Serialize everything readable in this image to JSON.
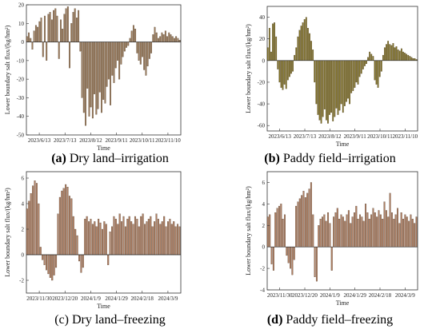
{
  "chart_data": [
    {
      "type": "bar",
      "panel_letter": "(a)",
      "caption": "Dry land–irrigation",
      "xlabel": "Time",
      "ylabel": "Lower boundary salt flux/(kg/hm²)",
      "ylim": [
        -50,
        20
      ],
      "yticks": [
        20,
        10,
        0,
        -10,
        -20,
        -30,
        -40,
        -50
      ],
      "xticks": [
        "2023/6/13",
        "2023/7/13",
        "2023/8/12",
        "2023/9/11",
        "2023/10/11",
        "2023/11/10"
      ],
      "bar_color": "#9c7b5a",
      "values": [
        3,
        5,
        2,
        -4,
        6,
        9,
        8,
        11,
        13,
        -8,
        14,
        -10,
        15,
        16,
        12,
        17,
        18,
        14,
        -9,
        12,
        7,
        15,
        18,
        19,
        -14,
        10,
        16,
        18,
        13,
        17,
        -5,
        -30,
        -38,
        -45,
        -25,
        -40,
        -35,
        -41,
        -28,
        -39,
        -36,
        -27,
        -38,
        -31,
        -33,
        -24,
        -20,
        -34,
        -18,
        -22,
        -14,
        -10,
        -20,
        -12,
        -8,
        -5,
        -3,
        -2,
        2,
        6,
        9,
        7,
        -6,
        -10,
        -12,
        -8,
        -15,
        -18,
        -13,
        -9,
        -6,
        4,
        8,
        5,
        2,
        3,
        5,
        4,
        6,
        3,
        5,
        4,
        3,
        2,
        3,
        2,
        1
      ]
    },
    {
      "type": "bar",
      "panel_letter": "(b)",
      "caption": "Paddy field–irrigation",
      "xlabel": "Time",
      "ylabel": "Lower boundary salt flux/(kg/hm²)",
      "ylim": [
        -65,
        50
      ],
      "yticks": [
        40,
        20,
        0,
        -20,
        -40,
        -60
      ],
      "xticks": [
        "2023/6/13",
        "2023/7/13",
        "2023/8/12",
        "2023/9/11",
        "2023/10/11",
        "2023/11/10"
      ],
      "bar_color": "#827324",
      "values": [
        12,
        30,
        8,
        34,
        35,
        22,
        -8,
        -20,
        -25,
        -27,
        -22,
        -26,
        -18,
        -15,
        -12,
        -10,
        5,
        12,
        22,
        28,
        32,
        35,
        38,
        40,
        30,
        25,
        18,
        10,
        -20,
        -40,
        -50,
        -55,
        -58,
        -52,
        -45,
        -55,
        -58,
        -50,
        -48,
        -56,
        -52,
        -44,
        -50,
        -46,
        -40,
        -48,
        -42,
        -38,
        -35,
        -40,
        -30,
        -28,
        -25,
        -20,
        -22,
        -15,
        -12,
        -8,
        -5,
        -3,
        3,
        8,
        6,
        4,
        -18,
        -22,
        -25,
        -15,
        -10,
        5,
        12,
        15,
        18,
        15,
        14,
        16,
        12,
        13,
        10,
        9,
        11,
        8,
        7,
        6,
        5,
        4,
        3,
        2,
        2,
        1
      ]
    },
    {
      "type": "bar",
      "panel_letter": "(c)",
      "caption": "Dry land–freezing",
      "xlabel": "Time",
      "ylabel": "Lower boundary salt flux/(kg/hm²)",
      "ylim": [
        -3,
        6.5
      ],
      "yticks": [
        6,
        4,
        2,
        0,
        -2
      ],
      "xticks": [
        "2023/11/30",
        "2023/12/20",
        "2024/1/9",
        "2024/1/29",
        "2024/2/18",
        "2024/3/9"
      ],
      "bar_color": "#b07f63",
      "values": [
        3.6,
        4.2,
        4.8,
        5.4,
        5.8,
        5.6,
        4.0,
        0.6,
        -0.4,
        -0.8,
        -1.2,
        -1.5,
        -1.8,
        -2.0,
        -1.6,
        -1.0,
        3.2,
        4.5,
        5.0,
        5.2,
        5.5,
        5.3,
        4.6,
        4.4,
        3.0,
        2.0,
        1.5,
        -0.5,
        -1.4,
        -1.0,
        2.8,
        3.0,
        2.6,
        2.8,
        2.4,
        2.6,
        2.2,
        2.8,
        2.5,
        2.0,
        2.6,
        2.4,
        -0.8,
        1.8,
        2.2,
        3.0,
        2.8,
        2.4,
        3.2,
        2.6,
        3.0,
        2.2,
        2.8,
        3.0,
        2.6,
        2.4,
        3.0,
        2.8,
        2.2,
        3.0,
        3.2,
        2.4,
        2.6,
        2.8,
        3.0,
        2.2,
        2.6,
        3.2,
        2.8,
        2.4,
        2.6,
        3.0,
        2.2,
        2.6,
        2.8,
        2.4,
        2.6,
        2.2,
        2.4,
        2.2
      ]
    },
    {
      "type": "bar",
      "panel_letter": "(d)",
      "caption": "Paddy field–freezing",
      "xlabel": "Time",
      "ylabel": "Lower boundary salt flux/(kg/hm²)",
      "ylim": [
        -4,
        7
      ],
      "yticks": [
        6,
        4,
        2,
        0,
        -2,
        -4
      ],
      "xticks": [
        "2023/11/30",
        "2023/12/20",
        "2024/1/9",
        "2024/1/29",
        "2024/2/18",
        "2024/3/9"
      ],
      "bar_color": "#b07f63",
      "values": [
        2.8,
        3.0,
        -1.6,
        -2.2,
        3.2,
        3.6,
        3.8,
        4.0,
        2.6,
        3.0,
        -0.8,
        -1.5,
        -2.0,
        -2.6,
        -1.2,
        3.8,
        4.2,
        4.5,
        4.8,
        5.2,
        4.6,
        5.0,
        5.4,
        6.0,
        3.0,
        -2.8,
        -3.2,
        2.0,
        2.6,
        2.8,
        3.0,
        2.4,
        3.2,
        2.2,
        -2.2,
        2.8,
        3.2,
        3.6,
        2.6,
        3.0,
        2.8,
        2.4,
        3.0,
        3.4,
        2.2,
        2.8,
        3.2,
        3.8,
        2.6,
        3.0,
        2.8,
        2.4,
        4.0,
        3.2,
        2.6,
        3.0,
        3.6,
        3.2,
        2.8,
        3.4,
        3.0,
        2.6,
        4.2,
        3.4,
        2.8,
        5.0,
        3.2,
        2.6,
        3.0,
        3.6,
        2.2,
        3.2,
        2.6,
        3.0,
        2.8,
        2.4,
        3.0,
        2.6,
        2.2,
        2.8
      ]
    }
  ]
}
